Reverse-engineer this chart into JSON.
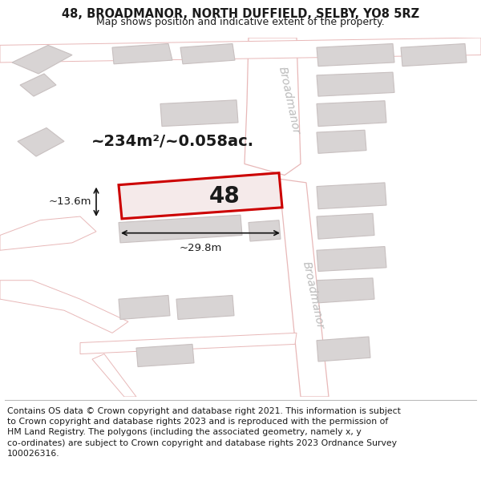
{
  "title_line1": "48, BROADMANOR, NORTH DUFFIELD, SELBY, YO8 5RZ",
  "title_line2": "Map shows position and indicative extent of the property.",
  "footer_text": "Contains OS data © Crown copyright and database right 2021. This information is subject\nto Crown copyright and database rights 2023 and is reproduced with the permission of\nHM Land Registry. The polygons (including the associated geometry, namely x, y\nco-ordinates) are subject to Crown copyright and database rights 2023 Ordnance Survey\n100026316.",
  "area_label": "~234m²/~0.058ac.",
  "number_label": "48",
  "width_label": "~29.8m",
  "height_label": "~13.6m",
  "road_label_top": "Broadmanor",
  "road_label_bottom": "Broadmanor",
  "map_bg": "#f2efef",
  "road_fill": "#ffffff",
  "road_stroke": "#e8b8b8",
  "building_fill": "#d8d4d4",
  "building_stroke": "#c8c0c0",
  "highlight_color": "#cc0000",
  "highlight_fill": "#f5eaea",
  "text_color": "#1a1a1a",
  "dim_color": "#111111",
  "road_text_color": "#bbbbbb",
  "title_fontsize": 10.5,
  "subtitle_fontsize": 9,
  "footer_fontsize": 7.8,
  "area_fontsize": 14,
  "number_fontsize": 20,
  "dim_fontsize": 9.5,
  "road_fontsize": 10
}
